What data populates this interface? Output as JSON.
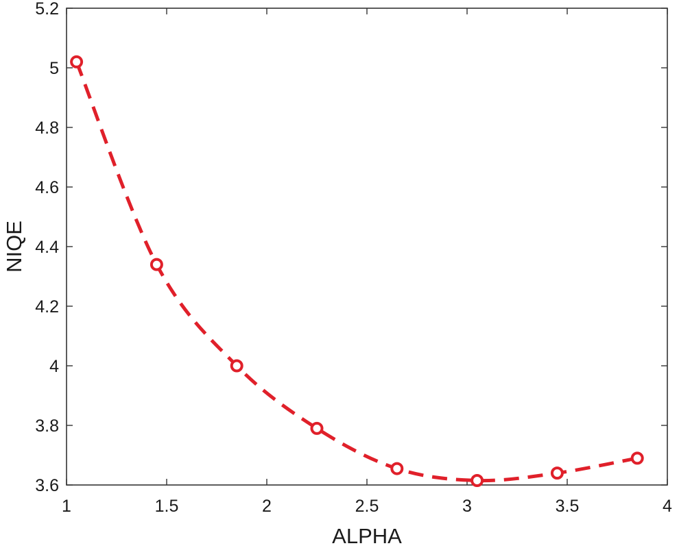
{
  "chart_data": {
    "type": "line",
    "title": "",
    "xlabel": "ALPHA",
    "ylabel": "NIQE",
    "xlim": [
      1,
      4
    ],
    "ylim": [
      3.6,
      5.2
    ],
    "xticks": [
      1,
      1.5,
      2,
      2.5,
      3,
      3.5,
      4
    ],
    "xtick_labels": [
      "1",
      "1.5",
      "2",
      "2.5",
      "3",
      "3.5",
      "4"
    ],
    "yticks": [
      3.6,
      3.8,
      4.0,
      4.2,
      4.4,
      4.6,
      4.8,
      5.0,
      5.2
    ],
    "ytick_labels": [
      "3.6",
      "3.8",
      "4",
      "4.2",
      "4.4",
      "4.6",
      "4.8",
      "5",
      "5.2"
    ],
    "grid": false,
    "legend": "none",
    "series": [
      {
        "color": "#e0202a",
        "line_style": "dashed",
        "marker": "circle",
        "x": [
          1.05,
          1.45,
          1.85,
          2.25,
          2.65,
          3.05,
          3.45,
          3.85
        ],
        "y": [
          5.02,
          4.34,
          4.0,
          3.79,
          3.655,
          3.615,
          3.64,
          3.69
        ]
      }
    ]
  }
}
